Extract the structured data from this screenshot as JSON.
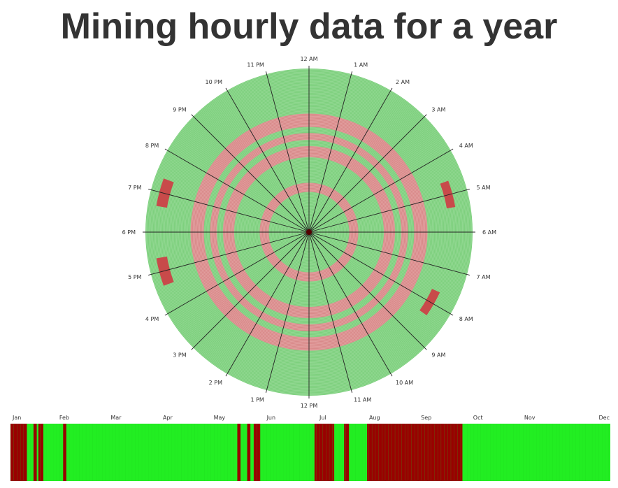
{
  "title": "Mining hourly data for a year",
  "chart_data": [
    {
      "type": "radial-heatmap",
      "description_of_encoding": "",
      "hour_labels": [
        "12 AM",
        "1 AM",
        "2 AM",
        "3 AM",
        "4 AM",
        "5 AM",
        "6 AM",
        "7 AM",
        "8 AM",
        "9 AM",
        "10 AM",
        "11 AM",
        "12 PM",
        "1 PM",
        "2 PM",
        "3 PM",
        "4 PM",
        "5 PM",
        "6 PM",
        "7 PM",
        "8 PM",
        "9 PM",
        "10 PM",
        "11 PM"
      ],
      "colors": {
        "ok": "#7ed07e",
        "issue": "#d98a8a",
        "issue_strong": "#c84a4a",
        "spoke": "#222222"
      },
      "issue_day_ranges": [
        [
          80,
          100
        ],
        [
          160,
          185
        ],
        [
          200,
          215
        ],
        [
          230,
          260
        ]
      ],
      "notable_cells": [
        {
          "hour": 5,
          "day_range": [
            310,
            330
          ]
        },
        {
          "hour": 8,
          "day_range": [
            300,
            320
          ]
        },
        {
          "hour": 17,
          "day_range": [
            320,
            345
          ]
        },
        {
          "hour": 19,
          "day_range": [
            320,
            345
          ]
        }
      ]
    },
    {
      "type": "heatmap",
      "months": [
        "Jan",
        "Feb",
        "Mar",
        "Apr",
        "May",
        "Jun",
        "Jul",
        "Aug",
        "Sep",
        "Oct",
        "Nov",
        "Dec"
      ],
      "colors": {
        "ok": "#22ee22",
        "issue": "#990000"
      },
      "issue_day_ranges": [
        [
          0,
          9
        ],
        [
          14,
          15
        ],
        [
          17,
          19
        ],
        [
          32,
          33
        ],
        [
          138,
          139
        ],
        [
          144,
          145
        ],
        [
          148,
          151
        ],
        [
          185,
          196
        ],
        [
          203,
          205
        ],
        [
          217,
          274
        ]
      ]
    }
  ]
}
